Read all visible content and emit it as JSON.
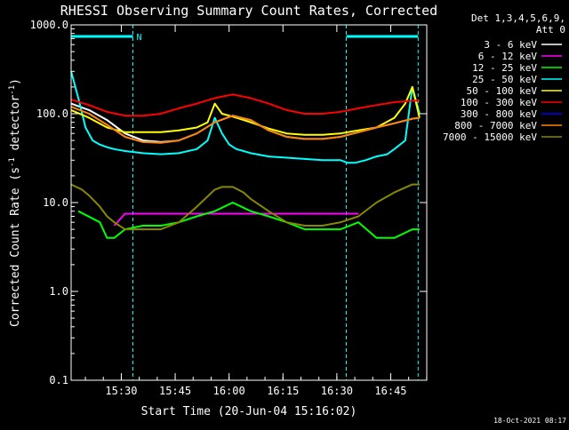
{
  "chart_data": {
    "type": "line",
    "title": "RHESSI Observing Summary Count Rates, Corrected",
    "xlabel": "Start Time (20-Jun-04 15:16:02)",
    "ylabel": "Corrected Count Rate (s",
    "ylabel_sup1": "-1",
    "ylabel_mid": " detector",
    "ylabel_sup2": "-1",
    "ylabel_end": ")",
    "x_unit": "minutes since 15:16:02",
    "xlim": [
      0,
      99
    ],
    "ylim": [
      0.1,
      1000
    ],
    "yscale": "log",
    "x_ticks": [
      {
        "value": 13.97,
        "label": "15:30"
      },
      {
        "value": 28.97,
        "label": "15:45"
      },
      {
        "value": 43.97,
        "label": "16:00"
      },
      {
        "value": 58.97,
        "label": "16:15"
      },
      {
        "value": 73.97,
        "label": "16:30"
      },
      {
        "value": 88.97,
        "label": "16:45"
      }
    ],
    "y_ticks": [
      {
        "value": 0.1,
        "label": "0.1"
      },
      {
        "value": 1,
        "label": "1.0"
      },
      {
        "value": 10,
        "label": "10.0"
      },
      {
        "value": 100,
        "label": "100.0"
      },
      {
        "value": 1000,
        "label": "1000.0"
      }
    ],
    "legend_header": [
      "Det 1,3,4,5,6,9,",
      "Att 0"
    ],
    "legend_position": "right",
    "footer_date": "18-Oct-2021 08:17",
    "night_intervals": [
      [
        0,
        17.2
      ],
      [
        76.6,
        96.6
      ]
    ],
    "night_label": "N",
    "series": [
      {
        "name": "3 - 6 keV",
        "color": "#ffffff",
        "x": [
          0,
          5,
          10,
          15,
          20,
          25,
          30,
          35,
          40,
          45,
          50,
          55,
          60,
          65,
          70,
          75,
          80,
          85,
          90,
          95,
          97
        ],
        "values": [
          130,
          110,
          85,
          60,
          50,
          48,
          50,
          60,
          80,
          95,
          85,
          65,
          55,
          52,
          52,
          55,
          62,
          70,
          78,
          88,
          90
        ]
      },
      {
        "name": "6 - 12 keV",
        "color": "#ff00ff",
        "x": [
          12,
          15,
          20,
          25,
          30,
          35,
          40,
          45,
          50,
          55,
          60,
          65,
          70,
          75,
          80
        ],
        "values": [
          5.5,
          7.5,
          7.5,
          7.5,
          7.5,
          7.5,
          7.5,
          7.5,
          7.5,
          7.5,
          7.5,
          7.5,
          7.5,
          7.5,
          7.5
        ]
      },
      {
        "name": "12 - 25 keV",
        "color": "#00ff00",
        "x": [
          2,
          8,
          10,
          12,
          15,
          20,
          25,
          30,
          35,
          40,
          45,
          50,
          55,
          60,
          65,
          70,
          75,
          80,
          85,
          90,
          95,
          97
        ],
        "values": [
          8,
          6,
          4,
          4,
          5,
          5.5,
          5.5,
          6,
          7,
          8,
          10,
          8,
          7,
          6,
          5,
          5,
          5,
          6,
          4,
          4,
          5,
          5
        ]
      },
      {
        "name": "25 - 50 keV",
        "color": "#00ffff",
        "x": [
          0,
          2,
          4,
          6,
          8,
          10,
          12,
          15,
          20,
          25,
          30,
          35,
          38,
          40,
          42,
          44,
          46,
          48,
          50,
          55,
          60,
          65,
          70,
          75,
          77,
          79,
          82,
          85,
          88,
          90,
          93,
          95,
          97
        ],
        "values": [
          300,
          150,
          70,
          50,
          45,
          42,
          40,
          38,
          36,
          35,
          36,
          40,
          50,
          90,
          60,
          45,
          40,
          38,
          36,
          33,
          32,
          31,
          30,
          30,
          28,
          28,
          30,
          33,
          35,
          40,
          50,
          200,
          100
        ]
      },
      {
        "name": "50 - 100 keV",
        "color": "#ffff00",
        "x": [
          0,
          5,
          10,
          15,
          20,
          25,
          30,
          35,
          38,
          40,
          42,
          44,
          46,
          48,
          50,
          55,
          60,
          65,
          70,
          75,
          80,
          85,
          90,
          93,
          95,
          97
        ],
        "values": [
          110,
          90,
          70,
          62,
          62,
          62,
          65,
          70,
          80,
          130,
          100,
          95,
          90,
          85,
          80,
          68,
          60,
          58,
          58,
          60,
          65,
          70,
          90,
          130,
          200,
          90
        ]
      },
      {
        "name": "100 - 300 keV",
        "color": "#ff0000",
        "x": [
          0,
          5,
          10,
          15,
          20,
          25,
          30,
          35,
          40,
          45,
          50,
          55,
          60,
          65,
          70,
          75,
          80,
          85,
          90,
          95,
          97
        ],
        "values": [
          145,
          125,
          105,
          95,
          95,
          100,
          115,
          130,
          150,
          165,
          150,
          130,
          110,
          100,
          100,
          105,
          115,
          125,
          135,
          140,
          140
        ]
      },
      {
        "name": "300 - 800 keV",
        "color": "#0000ff",
        "x": [
          0,
          5,
          10,
          15,
          20,
          25,
          30,
          35,
          40,
          45,
          50,
          55,
          60,
          65,
          70,
          75,
          80,
          85,
          90,
          95,
          97
        ],
        "values": [
          120,
          100,
          75,
          55,
          48,
          47,
          50,
          60,
          80,
          95,
          85,
          65,
          55,
          52,
          52,
          55,
          62,
          70,
          78,
          88,
          90
        ]
      },
      {
        "name": "800 - 7000 keV",
        "color": "#ff8800",
        "x": [
          0,
          5,
          10,
          15,
          20,
          25,
          30,
          35,
          40,
          45,
          50,
          55,
          60,
          65,
          70,
          75,
          80,
          85,
          90,
          95,
          97
        ],
        "values": [
          120,
          100,
          75,
          55,
          48,
          47,
          50,
          60,
          80,
          95,
          85,
          65,
          55,
          52,
          52,
          55,
          62,
          70,
          78,
          88,
          90
        ]
      },
      {
        "name": "7000 - 15000 keV",
        "color": "#888800",
        "x": [
          0,
          3,
          5,
          8,
          10,
          12,
          15,
          20,
          25,
          30,
          35,
          40,
          42,
          45,
          48,
          50,
          55,
          60,
          65,
          70,
          75,
          80,
          85,
          90,
          95,
          97
        ],
        "values": [
          16,
          14,
          12,
          9,
          7,
          6,
          5,
          5,
          5,
          6,
          9,
          14,
          15,
          15,
          13,
          11,
          8,
          6,
          5.5,
          5.5,
          6,
          7,
          10,
          13,
          16,
          16
        ]
      }
    ]
  }
}
